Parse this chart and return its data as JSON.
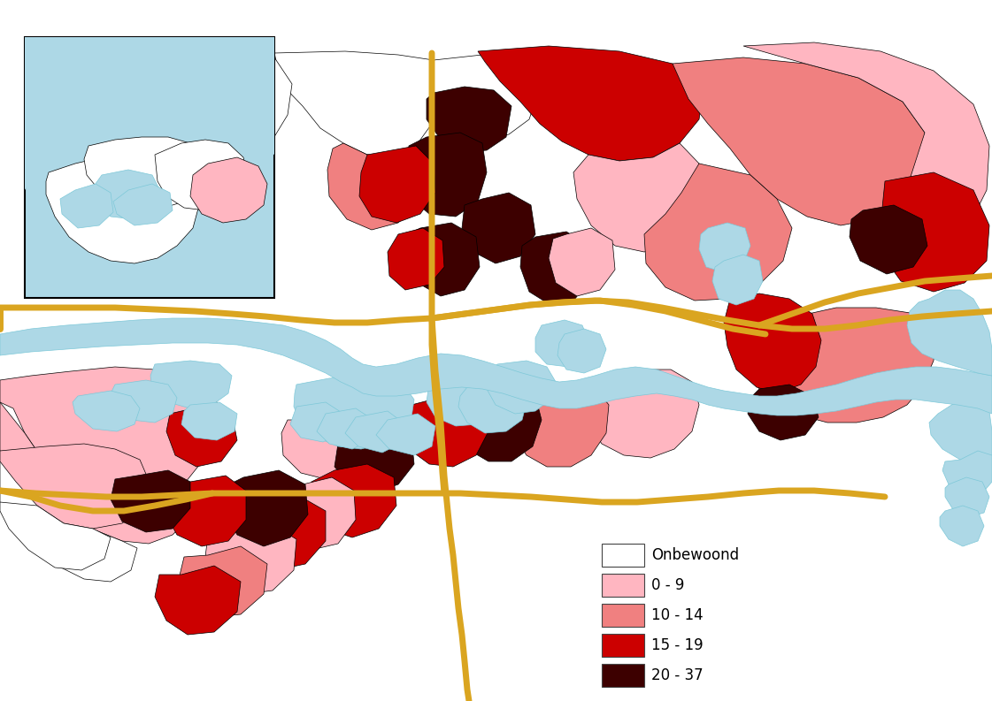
{
  "background_color": "#ffffff",
  "water_color": "#add8e6",
  "road_color": "#DAA520",
  "border_color": "#000000",
  "colors": {
    "uninhabited": "#ffffff",
    "cat0_9": "#ffb6c1",
    "cat10_14": "#f08080",
    "cat15_19": "#cc0000",
    "cat20_37": "#3d0000"
  },
  "legend_labels": [
    "Onbewoond",
    "0 - 9",
    "10 - 14",
    "15 - 19",
    "20 - 37"
  ],
  "legend_colors": [
    "#ffffff",
    "#ffb6c1",
    "#f08080",
    "#cc0000",
    "#3d0000"
  ],
  "inset_bg": "#add8e6",
  "inset_border": "#000000"
}
